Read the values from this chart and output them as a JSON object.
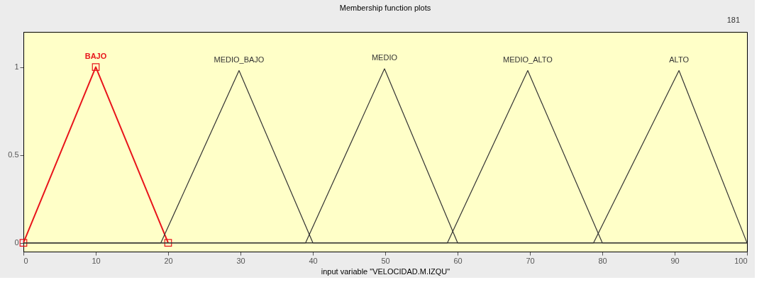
{
  "chart_data": {
    "type": "line",
    "title": "Membership function plots",
    "xlabel": "input variable \"VELOCIDAD.M.IZQU\"",
    "series": [
      {
        "name": "BAJO",
        "color": "#e8141b",
        "x": [
          0,
          10,
          20
        ],
        "values": [
          0,
          1,
          0
        ],
        "marker": "square"
      },
      {
        "name": "MEDIO_BAJO",
        "color": "#333333",
        "x": [
          0,
          19,
          29.8,
          40,
          100
        ],
        "values": [
          0,
          0,
          0.98,
          0,
          0
        ]
      },
      {
        "name": "MEDIO",
        "color": "#333333",
        "x": [
          0,
          39,
          49.9,
          60,
          100
        ],
        "values": [
          0,
          0,
          0.99,
          0,
          0
        ]
      },
      {
        "name": "MEDIO_ALTO",
        "color": "#333333",
        "x": [
          0,
          58.6,
          69.7,
          80,
          100
        ],
        "values": [
          0,
          0,
          0.98,
          0,
          0
        ]
      },
      {
        "name": "ALTO",
        "color": "#333333",
        "x": [
          0,
          78.8,
          90.6,
          100
        ],
        "values": [
          0,
          0,
          0.98,
          0
        ]
      }
    ],
    "xlim": [
      0,
      100
    ],
    "ylim": [
      -0.05,
      1.2
    ],
    "xticks": [
      0,
      10,
      20,
      30,
      40,
      50,
      60,
      70,
      80,
      90,
      100
    ],
    "yticks": [
      0,
      0.5,
      1
    ],
    "grid": false,
    "legend": false,
    "line_style": "solid",
    "annotations": [
      "181"
    ]
  }
}
